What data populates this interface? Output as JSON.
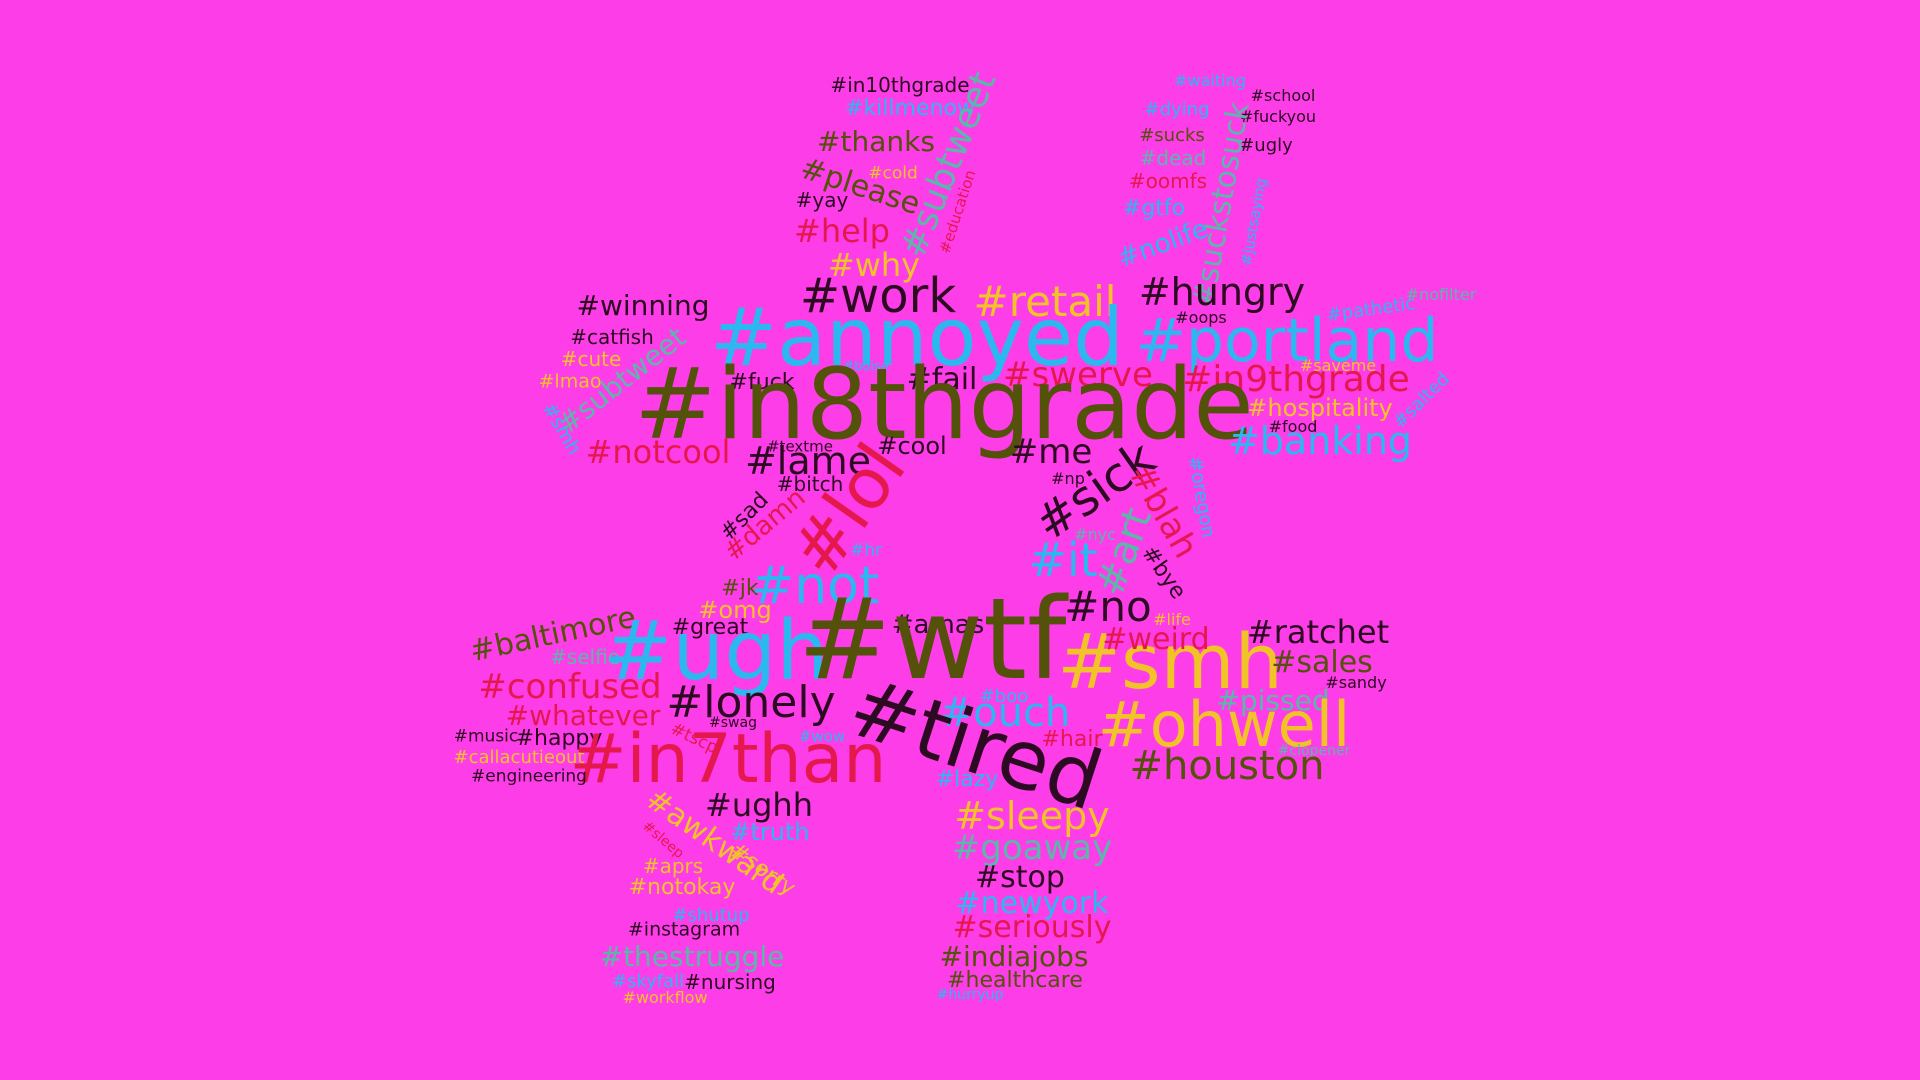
{
  "palette": {
    "background": "#fd3de8",
    "dark": "#2c0b22",
    "olive": "#54510a",
    "blue": "#2cb7ef",
    "yellow": "#f2c328",
    "red": "#e5184e",
    "teal": "#5cb7ab"
  },
  "words": [
    {
      "text": "#in10thgrade",
      "color": "dark"
    },
    {
      "text": "#killmenow",
      "color": "blue"
    },
    {
      "text": "#subtweet",
      "color": "teal"
    },
    {
      "text": "#thanks",
      "color": "olive"
    },
    {
      "text": "#cold",
      "color": "yellow"
    },
    {
      "text": "#please",
      "color": "olive"
    },
    {
      "text": "#yay",
      "color": "dark"
    },
    {
      "text": "#education",
      "color": "red"
    },
    {
      "text": "#help",
      "color": "red"
    },
    {
      "text": "#why",
      "color": "yellow"
    },
    {
      "text": "#waiting",
      "color": "blue"
    },
    {
      "text": "#school",
      "color": "dark"
    },
    {
      "text": "#dying",
      "color": "blue"
    },
    {
      "text": "#fuckyou",
      "color": "dark"
    },
    {
      "text": "#sucks",
      "color": "olive"
    },
    {
      "text": "#ugly",
      "color": "dark"
    },
    {
      "text": "#dead",
      "color": "teal"
    },
    {
      "text": "#oomfs",
      "color": "red"
    },
    {
      "text": "#suckstosuck",
      "color": "teal"
    },
    {
      "text": "#justsaying",
      "color": "blue"
    },
    {
      "text": "#gtfo",
      "color": "blue"
    },
    {
      "text": "#nolife",
      "color": "blue"
    },
    {
      "text": "#work",
      "color": "dark"
    },
    {
      "text": "#retail",
      "color": "yellow"
    },
    {
      "text": "#hungry",
      "color": "dark"
    },
    {
      "text": "#winning",
      "color": "dark"
    },
    {
      "text": "#catfish",
      "color": "dark"
    },
    {
      "text": "#cute",
      "color": "yellow"
    },
    {
      "text": "#subtweet",
      "color": "teal"
    },
    {
      "text": "#lmao",
      "color": "yellow"
    },
    {
      "text": "#smh",
      "color": "blue"
    },
    {
      "text": "#annoyed",
      "color": "blue"
    },
    {
      "text": "#portland",
      "color": "blue"
    },
    {
      "text": "#pathetic",
      "color": "blue"
    },
    {
      "text": "#nofilter",
      "color": "teal"
    },
    {
      "text": "#oops",
      "color": "dark"
    },
    {
      "text": "#saveme",
      "color": "yellow"
    },
    {
      "text": "#boise",
      "color": "blue"
    },
    {
      "text": "#fuck",
      "color": "dark"
    },
    {
      "text": "#fail",
      "color": "dark"
    },
    {
      "text": "#swerve",
      "color": "red"
    },
    {
      "text": "#in9thgrade",
      "color": "red"
    },
    {
      "text": "#in8thgrade",
      "color": "olive"
    },
    {
      "text": "#hospitality",
      "color": "yellow"
    },
    {
      "text": "#food",
      "color": "dark"
    },
    {
      "text": "#salted",
      "color": "blue"
    },
    {
      "text": "#banking",
      "color": "blue"
    },
    {
      "text": "#textme",
      "color": "dark"
    },
    {
      "text": "#notcool",
      "color": "red"
    },
    {
      "text": "#lame",
      "color": "dark"
    },
    {
      "text": "#cool",
      "color": "dark"
    },
    {
      "text": "#me",
      "color": "dark"
    },
    {
      "text": "#np",
      "color": "dark"
    },
    {
      "text": "#sick",
      "color": "dark"
    },
    {
      "text": "#bitch",
      "color": "dark"
    },
    {
      "text": "#lol",
      "color": "red"
    },
    {
      "text": "#blah",
      "color": "red"
    },
    {
      "text": "#oregon",
      "color": "blue"
    },
    {
      "text": "#sad",
      "color": "dark"
    },
    {
      "text": "#damn",
      "color": "red"
    },
    {
      "text": "#hr",
      "color": "blue"
    },
    {
      "text": "#nyc",
      "color": "teal"
    },
    {
      "text": "#it",
      "color": "blue"
    },
    {
      "text": "#art",
      "color": "teal"
    },
    {
      "text": "#bye",
      "color": "dark"
    },
    {
      "text": "#jk",
      "color": "olive"
    },
    {
      "text": "#not",
      "color": "blue"
    },
    {
      "text": "#omg",
      "color": "yellow"
    },
    {
      "text": "#no",
      "color": "dark"
    },
    {
      "text": "#life",
      "color": "yellow"
    },
    {
      "text": "#baltimore",
      "color": "olive"
    },
    {
      "text": "#great",
      "color": "dark"
    },
    {
      "text": "#amas",
      "color": "dark"
    },
    {
      "text": "#ratchet",
      "color": "dark"
    },
    {
      "text": "#selfie",
      "color": "teal"
    },
    {
      "text": "#ugh",
      "color": "blue"
    },
    {
      "text": "#wtf",
      "color": "olive"
    },
    {
      "text": "#smh",
      "color": "yellow"
    },
    {
      "text": "#weird",
      "color": "red"
    },
    {
      "text": "#sales",
      "color": "olive"
    },
    {
      "text": "#sandy",
      "color": "dark"
    },
    {
      "text": "#confused",
      "color": "red"
    },
    {
      "text": "#lonely",
      "color": "dark"
    },
    {
      "text": "#boo",
      "color": "blue"
    },
    {
      "text": "#pissed",
      "color": "teal"
    },
    {
      "text": "#whatever",
      "color": "red"
    },
    {
      "text": "#ouch",
      "color": "blue"
    },
    {
      "text": "#tired",
      "color": "dark"
    },
    {
      "text": "#ohwell",
      "color": "yellow"
    },
    {
      "text": "#music",
      "color": "dark"
    },
    {
      "text": "#happy",
      "color": "dark"
    },
    {
      "text": "#swag",
      "color": "dark"
    },
    {
      "text": "#tscp",
      "color": "red"
    },
    {
      "text": "#wow",
      "color": "blue"
    },
    {
      "text": "#hair",
      "color": "red"
    },
    {
      "text": "#clopener",
      "color": "teal"
    },
    {
      "text": "#callacutieout",
      "color": "yellow"
    },
    {
      "text": "#in7than",
      "color": "red"
    },
    {
      "text": "#engineering",
      "color": "dark"
    },
    {
      "text": "#lazy",
      "color": "blue"
    },
    {
      "text": "#houston",
      "color": "olive"
    },
    {
      "text": "#ughh",
      "color": "dark"
    },
    {
      "text": "#sleepy",
      "color": "yellow"
    },
    {
      "text": "#awkward",
      "color": "yellow"
    },
    {
      "text": "#truth",
      "color": "blue"
    },
    {
      "text": "#goaway",
      "color": "teal"
    },
    {
      "text": "#sleep",
      "color": "red"
    },
    {
      "text": "#sorry",
      "color": "yellow"
    },
    {
      "text": "#aprs",
      "color": "yellow"
    },
    {
      "text": "#stop",
      "color": "dark"
    },
    {
      "text": "#notokay",
      "color": "yellow"
    },
    {
      "text": "#newyork",
      "color": "blue"
    },
    {
      "text": "#shutup",
      "color": "blue"
    },
    {
      "text": "#seriously",
      "color": "red"
    },
    {
      "text": "#instagram",
      "color": "dark"
    },
    {
      "text": "#thestruggle",
      "color": "teal"
    },
    {
      "text": "#indiajobs",
      "color": "olive"
    },
    {
      "text": "#skyfall",
      "color": "blue"
    },
    {
      "text": "#nursing",
      "color": "dark"
    },
    {
      "text": "#healthcare",
      "color": "olive"
    },
    {
      "text": "#workflow",
      "color": "yellow"
    },
    {
      "text": "#hurryup",
      "color": "blue"
    }
  ]
}
